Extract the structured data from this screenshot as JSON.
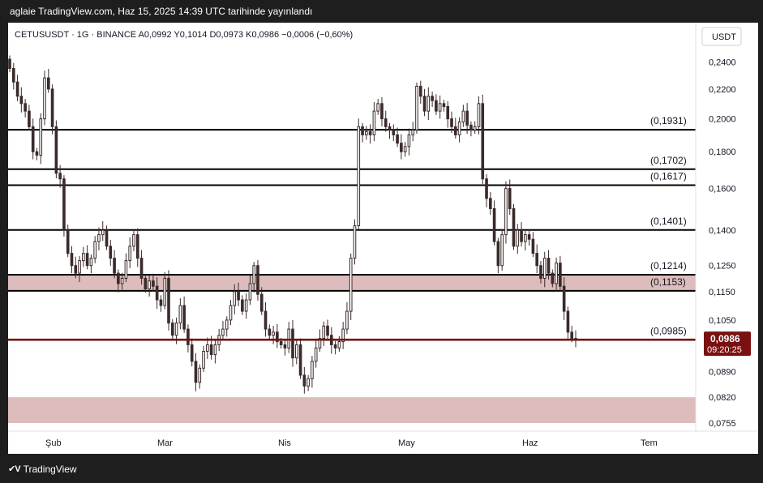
{
  "header": {
    "caption": "aglaie TradingView.com, Haz 15, 2025 14:39 UTC tarihinde yayınlandı"
  },
  "footer": {
    "brand": "TradingView"
  },
  "chart_data": {
    "type": "candlestick",
    "symbol_line": "CETUSUSDT · 1G · BINANCE  A0,0992  Y0,1014  D0,0973  K0,0986  −0,0006 (−0,60%)",
    "currency": "USDT",
    "scale": "log",
    "ylim": [
      0.0755,
      0.255
    ],
    "y_ticks": [
      {
        "value": 0.24,
        "label": "0,2400"
      },
      {
        "value": 0.22,
        "label": "0,2200"
      },
      {
        "value": 0.2,
        "label": "0,2000"
      },
      {
        "value": 0.18,
        "label": "0,1800"
      },
      {
        "value": 0.16,
        "label": "0,1600"
      },
      {
        "value": 0.14,
        "label": "0,1400"
      },
      {
        "value": 0.125,
        "label": "0,1250"
      },
      {
        "value": 0.115,
        "label": "0,1150"
      },
      {
        "value": 0.105,
        "label": "0,1050"
      },
      {
        "value": 0.089,
        "label": "0,0890"
      },
      {
        "value": 0.082,
        "label": "0,0820"
      },
      {
        "value": 0.0755,
        "label": "0,0755"
      }
    ],
    "x_ticks": [
      "Şub",
      "Mar",
      "Nis",
      "May",
      "Haz",
      "Tem"
    ],
    "levels": [
      {
        "value": 0.1931,
        "label": "(0,1931)"
      },
      {
        "value": 0.1702,
        "label": "(0,1702)"
      },
      {
        "value": 0.1617,
        "label": "(0,1617)"
      },
      {
        "value": 0.1401,
        "label": "(0,1401)"
      },
      {
        "value": 0.1214,
        "label": "(0,1214)"
      },
      {
        "value": 0.1153,
        "label": "(0,1153)"
      },
      {
        "value": 0.0985,
        "label": "(0,0985)"
      }
    ],
    "zones": [
      {
        "from": 0.1153,
        "to": 0.1214,
        "color": "#dcbcbc"
      },
      {
        "from": 0.0755,
        "to": 0.082,
        "color": "#dcbcbc"
      }
    ],
    "current_price": {
      "value": 0.0986,
      "label": "0,0986",
      "countdown": "09:20:25",
      "color": "#7a1010"
    },
    "candle_color": "#3b2b2b",
    "closes": [
      0.235,
      0.225,
      0.215,
      0.21,
      0.205,
      0.195,
      0.18,
      0.178,
      0.2,
      0.228,
      0.22,
      0.195,
      0.168,
      0.165,
      0.14,
      0.13,
      0.125,
      0.122,
      0.127,
      0.13,
      0.125,
      0.128,
      0.135,
      0.138,
      0.14,
      0.133,
      0.128,
      0.122,
      0.118,
      0.12,
      0.127,
      0.133,
      0.138,
      0.128,
      0.12,
      0.116,
      0.119,
      0.117,
      0.112,
      0.11,
      0.12,
      0.104,
      0.1,
      0.104,
      0.11,
      0.102,
      0.097,
      0.092,
      0.086,
      0.09,
      0.095,
      0.097,
      0.094,
      0.097,
      0.1,
      0.102,
      0.105,
      0.11,
      0.115,
      0.112,
      0.108,
      0.112,
      0.118,
      0.125,
      0.114,
      0.108,
      0.102,
      0.1,
      0.101,
      0.098,
      0.097,
      0.096,
      0.102,
      0.093,
      0.097,
      0.088,
      0.085,
      0.087,
      0.092,
      0.096,
      0.099,
      0.103,
      0.1,
      0.097,
      0.096,
      0.098,
      0.102,
      0.108,
      0.128,
      0.142,
      0.195,
      0.19,
      0.192,
      0.19,
      0.205,
      0.21,
      0.2,
      0.195,
      0.193,
      0.19,
      0.185,
      0.18,
      0.183,
      0.19,
      0.193,
      0.222,
      0.215,
      0.205,
      0.215,
      0.212,
      0.205,
      0.21,
      0.208,
      0.2,
      0.195,
      0.19,
      0.198,
      0.205,
      0.196,
      0.193,
      0.195,
      0.21,
      0.165,
      0.155,
      0.15,
      0.135,
      0.125,
      0.138,
      0.16,
      0.15,
      0.133,
      0.14,
      0.135,
      0.138,
      0.136,
      0.13,
      0.125,
      0.12,
      0.128,
      0.122,
      0.118,
      0.126,
      0.117,
      0.108,
      0.101,
      0.099,
      0.0986
    ]
  }
}
